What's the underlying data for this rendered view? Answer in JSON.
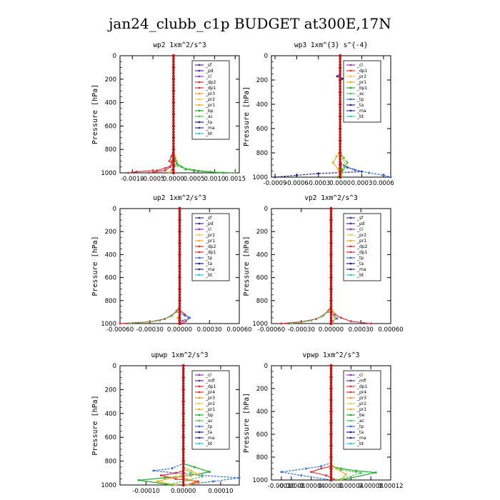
{
  "figure": {
    "title": "jan24_clubb_c1p  BUDGET at300E,17N"
  },
  "colors": {
    "_sf": "#5a2d8c",
    "_pd": "#4b2ca8",
    "_cl": "#9b30c8",
    "_dp1": "#e0303a",
    "_dp2": "#e0303a",
    "_pr1": "#e8b020",
    "_pr2": "#f0c84a",
    "_pr3": "#e8a030",
    "_pr4": "#e03030",
    "_bp": "#18b028",
    "_bp1": "#18b028",
    "_ac": "#50c850",
    "_tp": "#2a70e8",
    "_ta": "#1f1f8f",
    "_ma": "#30308f",
    "_bt": "#20c8e0",
    "_mfl": "#6a2aa0",
    "_be": "#18b028",
    "profile": "#cc1010"
  },
  "chart_data": [
    {
      "type": "line",
      "title": "wp2  1xm^2/s^3",
      "ylabel": "Pressure [hPa]",
      "xlim": [
        -0.0013,
        0.0016
      ],
      "ylim": [
        1000,
        0
      ],
      "xticks": [
        -0.001,
        -0.0005,
        0.0,
        0.0005,
        0.001,
        0.0015
      ],
      "xticklabels": [
        "-0.0010",
        "-0.0005",
        "0.0000",
        "0.0005",
        "0.0010",
        "0.0015"
      ],
      "yticks": [
        0,
        200,
        400,
        600,
        800,
        1000
      ],
      "legend": [
        "_sf",
        "_pd",
        "_cl",
        "_dp2",
        "_dp1",
        "_pr3",
        "_pr2",
        "_pr1",
        "_bp",
        "_ac",
        "_ta",
        "_ma",
        "_bt"
      ],
      "series": [
        {
          "key": "_dp1",
          "x": [
            0,
            0,
            -5e-05,
            -0.0001,
            0,
            -0.0002,
            -0.0004,
            -0.0009,
            -0.0011
          ],
          "y": [
            0,
            800,
            860,
            900,
            930,
            960,
            980,
            990,
            1000
          ]
        },
        {
          "key": "_dp2",
          "x": [
            0,
            0,
            -3e-05,
            -8e-05,
            -0.0002,
            -0.0006
          ],
          "y": [
            0,
            840,
            900,
            950,
            980,
            1000
          ]
        },
        {
          "key": "_pr1",
          "x": [
            0,
            0,
            4e-05,
            8e-05,
            3e-05,
            -5e-05,
            -0.0001
          ],
          "y": [
            0,
            820,
            860,
            900,
            940,
            980,
            1000
          ]
        },
        {
          "key": "_bp",
          "x": [
            0,
            0,
            3e-05,
            8e-05,
            0.0002,
            0.0003,
            0.0006,
            0.0012
          ],
          "y": [
            0,
            840,
            880,
            920,
            950,
            970,
            985,
            1000
          ]
        },
        {
          "key": "_ac",
          "x": [
            0,
            0,
            5e-05,
            0.0001,
            0.0004,
            0.0009,
            0.0015
          ],
          "y": [
            0,
            860,
            900,
            940,
            970,
            990,
            1000
          ]
        },
        {
          "key": "_tp",
          "x": [
            0,
            0,
            2e-05,
            -2e-05,
            0
          ],
          "y": [
            0,
            900,
            940,
            970,
            1000
          ]
        },
        {
          "key": "profile",
          "x": [
            0,
            0,
            0,
            0,
            0,
            0,
            0,
            0,
            0,
            0,
            0
          ],
          "y": [
            0,
            100,
            200,
            300,
            400,
            500,
            600,
            700,
            800,
            900,
            1000
          ]
        }
      ]
    },
    {
      "type": "line",
      "title": "wp3  1xm^{3} s^{-4}",
      "ylabel": "Pressure [hPa]",
      "xlim": [
        -0.00095,
        0.0007
      ],
      "ylim": [
        1000,
        0
      ],
      "xticks": [
        -0.0009,
        -0.0006,
        -0.0003,
        0.0,
        0.0003,
        0.0006
      ],
      "xticklabels": [
        "-0.0009",
        "-0.0006",
        "-0.0003",
        "0.0000",
        "0.0003",
        "0.0006"
      ],
      "yticks": [
        0,
        200,
        400,
        600,
        800,
        1000
      ],
      "legend": [
        "_cl",
        "_dp1",
        "_pr2",
        "_pr1",
        "_bp1",
        "_ac",
        "_tp",
        "_ta",
        "_ma",
        "_bt"
      ],
      "series": [
        {
          "key": "_ta",
          "x": [
            0,
            0,
            -4e-05,
            3e-05,
            0,
            0,
            0.0001,
            0.0003,
            -0.0003,
            -0.0006,
            -0.0009
          ],
          "y": [
            0,
            150,
            170,
            190,
            210,
            880,
            920,
            955,
            970,
            985,
            1000
          ]
        },
        {
          "key": "_tp",
          "x": [
            0,
            0,
            0.0002,
            0.0004,
            0.0006,
            0.0007
          ],
          "y": [
            0,
            900,
            940,
            965,
            985,
            1000
          ]
        },
        {
          "key": "_pr1",
          "x": [
            0,
            0,
            -5e-05,
            -0.0001,
            -3e-05,
            0
          ],
          "y": [
            0,
            780,
            830,
            880,
            930,
            1000
          ]
        },
        {
          "key": "_pr2",
          "x": [
            0,
            0,
            4e-05,
            8e-05,
            3e-05,
            0
          ],
          "y": [
            0,
            800,
            850,
            900,
            950,
            1000
          ]
        },
        {
          "key": "_ac",
          "x": [
            0,
            0,
            5e-05,
            0.0001,
            6e-05,
            2e-05
          ],
          "y": [
            0,
            800,
            840,
            880,
            920,
            1000
          ]
        },
        {
          "key": "_bp1",
          "x": [
            0,
            0,
            3e-05,
            1e-05,
            -3e-05
          ],
          "y": [
            0,
            900,
            940,
            970,
            1000
          ]
        },
        {
          "key": "profile",
          "x": [
            0,
            0,
            0,
            0,
            0,
            0,
            0,
            0,
            0,
            0,
            0
          ],
          "y": [
            0,
            100,
            200,
            300,
            400,
            500,
            600,
            700,
            800,
            900,
            1000
          ]
        }
      ]
    },
    {
      "type": "line",
      "title": "up2  1xm^2/s^3",
      "ylabel": "Pressure [hPa]",
      "xlim": [
        -0.0006,
        0.0006
      ],
      "ylim": [
        1000,
        0
      ],
      "xticks": [
        -0.0006,
        -0.0003,
        0.0,
        0.0003,
        0.0006
      ],
      "xticklabels": [
        "-0.00060",
        "-0.00030",
        "0.00000",
        "0.00030",
        "0.00060"
      ],
      "yticks": [
        0,
        200,
        400,
        600,
        800,
        1000
      ],
      "legend": [
        "_sf",
        "_pd",
        "_cl",
        "_pr2",
        "_pr1",
        "_dp2",
        "_dp1",
        "_tp",
        "_ta",
        "_ma",
        "_bt"
      ],
      "series": [
        {
          "key": "_dp1",
          "x": [
            0,
            0,
            -3e-05,
            -8e-05,
            -0.00015,
            -0.0003,
            -0.0006
          ],
          "y": [
            0,
            850,
            890,
            930,
            960,
            985,
            1000
          ]
        },
        {
          "key": "_dp2",
          "x": [
            0,
            0,
            5e-05,
            0.0001,
            6e-05,
            2e-05
          ],
          "y": [
            0,
            880,
            920,
            950,
            980,
            1000
          ]
        },
        {
          "key": "_tp",
          "x": [
            0,
            0,
            5e-05,
            0.0001,
            3e-05,
            0
          ],
          "y": [
            0,
            900,
            930,
            950,
            975,
            1000
          ]
        },
        {
          "key": "_pr1",
          "x": [
            0,
            0,
            1e-05,
            -2e-05,
            0
          ],
          "y": [
            0,
            850,
            900,
            950,
            1000
          ]
        },
        {
          "key": "_ac",
          "x": [
            0,
            0,
            -3e-05,
            -0.0001,
            -0.0002,
            -0.0005
          ],
          "y": [
            0,
            860,
            900,
            940,
            975,
            1000
          ]
        },
        {
          "key": "profile",
          "x": [
            0,
            0,
            0,
            0,
            0,
            0,
            0,
            0,
            0,
            0,
            0
          ],
          "y": [
            0,
            100,
            200,
            300,
            400,
            500,
            600,
            700,
            800,
            900,
            1000
          ]
        }
      ]
    },
    {
      "type": "line",
      "title": "vp2  1xm^2/s^3",
      "ylabel": "Pressure [hPa]",
      "xlim": [
        -0.0006,
        0.0006
      ],
      "ylim": [
        1000,
        0
      ],
      "xticks": [
        -0.0006,
        -0.0003,
        0.0,
        0.0003,
        0.0006
      ],
      "xticklabels": [
        "-0.00060",
        "-0.00030",
        "0.00000",
        "0.00030",
        "0.00060"
      ],
      "yticks": [
        0,
        200,
        400,
        600,
        800,
        1000
      ],
      "legend": [
        "_sf",
        "_pd",
        "_cl",
        "_pr2",
        "_pr1",
        "_dp2",
        "_dp1",
        "_tp",
        "_ta",
        "_ma",
        "_bt"
      ],
      "series": [
        {
          "key": "_dp1",
          "x": [
            0,
            0,
            -3e-05,
            -8e-05,
            -0.00015,
            -0.0003,
            -0.0005
          ],
          "y": [
            0,
            850,
            890,
            930,
            960,
            985,
            1000
          ]
        },
        {
          "key": "_dp2",
          "x": [
            0,
            0,
            4e-05,
            0.0001,
            0.0002,
            0.0004
          ],
          "y": [
            0,
            880,
            920,
            950,
            980,
            1000
          ]
        },
        {
          "key": "_tp",
          "x": [
            0,
            0,
            3e-05,
            6e-05,
            2e-05,
            0
          ],
          "y": [
            0,
            900,
            930,
            955,
            980,
            1000
          ]
        },
        {
          "key": "_pr1",
          "x": [
            0,
            0,
            2e-05,
            4e-05,
            1e-05
          ],
          "y": [
            0,
            850,
            900,
            950,
            1000
          ]
        },
        {
          "key": "_ac",
          "x": [
            0,
            0,
            -3e-05,
            -0.0001,
            -0.0002,
            -0.0004
          ],
          "y": [
            0,
            860,
            900,
            940,
            975,
            1000
          ]
        },
        {
          "key": "profile",
          "x": [
            0,
            0,
            0,
            0,
            0,
            0,
            0,
            0,
            0,
            0,
            0
          ],
          "y": [
            0,
            100,
            200,
            300,
            400,
            500,
            600,
            700,
            800,
            900,
            1000
          ]
        }
      ]
    },
    {
      "type": "line",
      "title": "upwp  1xm^2/s^3",
      "ylabel": "Pressure [hPa]",
      "xlim": [
        -0.00017,
        0.00015
      ],
      "ylim": [
        1000,
        0
      ],
      "xticks": [
        -0.0001,
        0.0,
        0.0001
      ],
      "xticklabels": [
        "-0.00010",
        "0.00000",
        "0.00010"
      ],
      "yticks": [
        0,
        200,
        400,
        600,
        800,
        1000
      ],
      "legend": [
        "_cl",
        "_mfl",
        "_dp1",
        "_pr4",
        "_pr3",
        "_pr2",
        "_pr1",
        "_bp",
        "_ac",
        "_tp",
        "_ta",
        "_ma",
        "_bt"
      ],
      "series": [
        {
          "key": "_tp",
          "x": [
            0,
            0,
            -3e-05,
            -8e-05,
            -2e-05,
            5e-05,
            0.00015,
            8e-05,
            0
          ],
          "y": [
            0,
            820,
            860,
            880,
            900,
            920,
            940,
            970,
            1000
          ]
        },
        {
          "key": "_bp",
          "x": [
            0,
            0,
            3e-05,
            7e-05,
            2e-05,
            -5e-05,
            -0.00012,
            -3e-05
          ],
          "y": [
            0,
            820,
            850,
            890,
            920,
            940,
            960,
            1000
          ]
        },
        {
          "key": "_dp1",
          "x": [
            0,
            0,
            -2e-05,
            -6e-05,
            -2e-05,
            4e-05,
            1e-05
          ],
          "y": [
            0,
            880,
            900,
            920,
            950,
            970,
            1000
          ]
        },
        {
          "key": "_pr1",
          "x": [
            0,
            0,
            2e-05,
            4e-05,
            -3e-05,
            -7e-05,
            -2e-05
          ],
          "y": [
            0,
            850,
            880,
            910,
            940,
            970,
            1000
          ]
        },
        {
          "key": "_ac",
          "x": [
            0,
            0,
            2e-05,
            5e-05,
            1e-05,
            -4e-05
          ],
          "y": [
            0,
            860,
            900,
            930,
            960,
            1000
          ]
        },
        {
          "key": "_pr3",
          "x": [
            0,
            0,
            -1e-05,
            2e-05,
            4e-05,
            1e-05
          ],
          "y": [
            0,
            900,
            930,
            960,
            985,
            1000
          ]
        },
        {
          "key": "profile",
          "x": [
            0,
            0,
            0,
            0,
            0,
            0,
            0,
            0,
            0,
            0,
            0
          ],
          "y": [
            0,
            100,
            200,
            300,
            400,
            500,
            600,
            700,
            800,
            900,
            1000
          ]
        }
      ]
    },
    {
      "type": "line",
      "title": "vpwp  1xm^2/s^3",
      "ylabel": "Pressure [hPa]",
      "xlim": [
        -0.00012,
        0.00012
      ],
      "ylim": [
        1000,
        0
      ],
      "xticks": [
        -0.0001,
        -8e-05,
        -4e-05,
        0.0,
        4e-05,
        8e-05,
        0.00012
      ],
      "xticklabels": [
        "-0.00010",
        "-0.00008",
        "-0.00004",
        "0.00000",
        "0.00004",
        "0.00008",
        "0.00012"
      ],
      "yticks": [
        0,
        200,
        400,
        600,
        800,
        1000
      ],
      "legend": [
        "_cl",
        "_mfl",
        "_dp1",
        "_pr4",
        "_pr3",
        "_pr2",
        "_pr1",
        "_be",
        "_ac",
        "_tp",
        "_ta",
        "_ma",
        "_bt"
      ],
      "series": [
        {
          "key": "_tp",
          "x": [
            0,
            0,
            -2e-05,
            -5e-05,
            -0.0001,
            -6e-05,
            0
          ],
          "y": [
            0,
            850,
            880,
            900,
            930,
            960,
            1000
          ]
        },
        {
          "key": "_be",
          "x": [
            0,
            0,
            2e-05,
            5e-05,
            9e-05,
            2e-05
          ],
          "y": [
            0,
            880,
            900,
            920,
            935,
            1000
          ]
        },
        {
          "key": "_dp1",
          "x": [
            0,
            0,
            -2e-05,
            -4e-05,
            -1e-05,
            1e-05
          ],
          "y": [
            0,
            880,
            900,
            930,
            960,
            1000
          ]
        },
        {
          "key": "_pr1",
          "x": [
            0,
            0,
            1e-05,
            3e-05,
            2e-05
          ],
          "y": [
            0,
            860,
            900,
            950,
            1000
          ]
        },
        {
          "key": "_ac",
          "x": [
            0,
            0,
            2e-05,
            6e-05,
            1e-05
          ],
          "y": [
            0,
            880,
            910,
            940,
            1000
          ]
        },
        {
          "key": "profile",
          "x": [
            0,
            0,
            0,
            0,
            0,
            0,
            0,
            0,
            0,
            0,
            0
          ],
          "y": [
            0,
            100,
            200,
            300,
            400,
            500,
            600,
            700,
            800,
            900,
            1000
          ]
        }
      ]
    }
  ]
}
